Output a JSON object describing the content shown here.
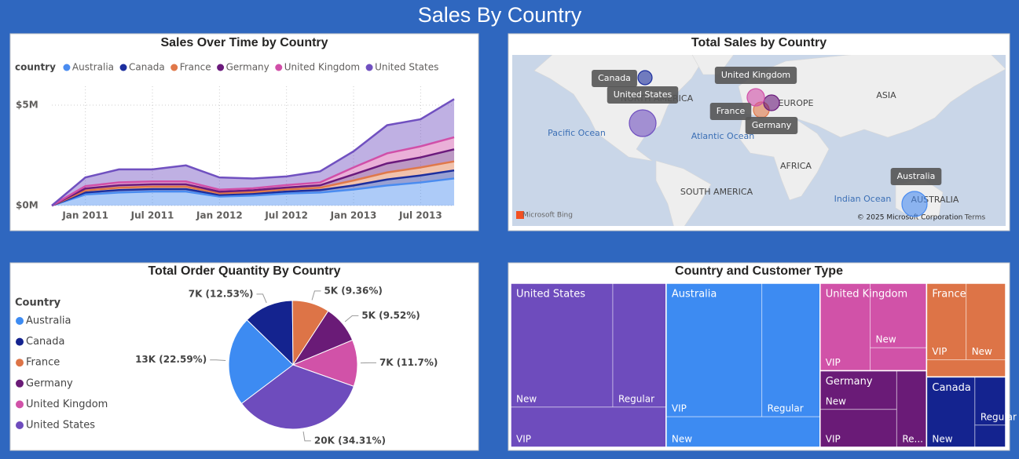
{
  "title": "Sales By Country",
  "chart_data": [
    {
      "type": "area",
      "title": "Sales Over Time by Country",
      "legend_title": "country",
      "stacked": true,
      "grid": true,
      "x": [
        null,
        "Jan 2011",
        null,
        "Jul 2011",
        null,
        "Jan 2012",
        null,
        "Jul 2012",
        null,
        "Jan 2013",
        null,
        "Jul 2013",
        null
      ],
      "ylim": [
        0,
        6000000
      ],
      "yticks": [
        {
          "value": 0,
          "label": "$0M"
        },
        {
          "value": 5000000,
          "label": "$5M"
        }
      ],
      "series": [
        {
          "name": "Australia",
          "color": "#4a8cf0",
          "values": [
            0,
            550000,
            650000,
            700000,
            700000,
            450000,
            500000,
            600000,
            650000,
            800000,
            1000000,
            1150000,
            1350000
          ]
        },
        {
          "name": "Canada",
          "color": "#1c2e9e",
          "values": [
            0,
            100000,
            120000,
            120000,
            120000,
            80000,
            90000,
            100000,
            120000,
            200000,
            300000,
            350000,
            400000
          ]
        },
        {
          "name": "France",
          "color": "#e0784a",
          "values": [
            0,
            100000,
            120000,
            120000,
            120000,
            80000,
            80000,
            100000,
            120000,
            250000,
            350000,
            400000,
            450000
          ]
        },
        {
          "name": "Germany",
          "color": "#6b1a7c",
          "values": [
            0,
            100000,
            120000,
            120000,
            120000,
            80000,
            90000,
            100000,
            120000,
            300000,
            450000,
            500000,
            600000
          ]
        },
        {
          "name": "United Kingdom",
          "color": "#d14fa8",
          "values": [
            0,
            120000,
            140000,
            140000,
            140000,
            100000,
            100000,
            120000,
            140000,
            350000,
            500000,
            550000,
            600000
          ]
        },
        {
          "name": "United States",
          "color": "#7050c0",
          "values": [
            0,
            430000,
            650000,
            600000,
            800000,
            610000,
            490000,
            430000,
            550000,
            800000,
            1400000,
            1350000,
            1900000
          ]
        }
      ]
    },
    {
      "type": "map",
      "title": "Total Sales by Country",
      "categories": [
        "Australia",
        "Canada",
        "France",
        "Germany",
        "United Kingdom",
        "United States"
      ],
      "values": [
        9200000,
        2900000,
        3600000,
        3600000,
        4400000,
        10400000
      ],
      "colors": [
        "#4a8cf0",
        "#1c2e9e",
        "#e0784a",
        "#6b1a7c",
        "#d14fa8",
        "#7050c0"
      ],
      "map_labels": [
        "NORTH AMERICA",
        "EUROPE",
        "ASIA",
        "Pacific Ocean",
        "Atlantic Ocean",
        "AFRICA",
        "SOUTH AMERICA",
        "Indian Ocean",
        "AUSTRALIA",
        "Microsoft Bing",
        "© 2025 Microsoft Corporation",
        "Terms"
      ]
    },
    {
      "type": "pie",
      "title": "Total Order Quantity By Country",
      "legend_title": "Country",
      "categories": [
        "Australia",
        "Canada",
        "France",
        "Germany",
        "United Kingdom",
        "United States"
      ],
      "values": [
        22.59,
        12.53,
        9.36,
        9.52,
        11.7,
        34.31
      ],
      "value_labels": [
        "13K (22.59%)",
        "7K (12.53%)",
        "5K (9.36%)",
        "5K (9.52%)",
        "7K (11.7%)",
        "20K (34.31%)"
      ],
      "colors": [
        "#3d8bf2",
        "#14238f",
        "#dd7447",
        "#6a1b77",
        "#d152a8",
        "#6e4cbd"
      ]
    },
    {
      "type": "treemap",
      "title": "Country and Customer Type",
      "groups": [
        {
          "name": "United States",
          "color": "#6e4cbd",
          "children": [
            {
              "name": "New",
              "value": 205
            },
            {
              "name": "Regular",
              "value": 107
            },
            {
              "name": "VIP",
              "value": 101
            }
          ]
        },
        {
          "name": "Australia",
          "color": "#3d8bf2",
          "children": [
            {
              "name": "VIP",
              "value": 207
            },
            {
              "name": "Regular",
              "value": 126
            },
            {
              "name": "New",
              "value": 76
            }
          ]
        },
        {
          "name": "United Kingdom",
          "color": "#d152a8",
          "children": [
            {
              "name": "VIP",
              "value": 71
            },
            {
              "name": "New",
              "value": 59
            },
            {
              "name": null,
              "value": 21
            }
          ]
        },
        {
          "name": "Germany",
          "color": "#6a1b77",
          "children": [
            {
              "name": "New",
              "value": 48
            },
            {
              "name": "VIP",
              "value": 47
            },
            {
              "name": "Re...",
              "value": 37
            }
          ]
        },
        {
          "name": "France",
          "color": "#dd7447",
          "children": [
            {
              "name": "VIP",
              "value": 49
            },
            {
              "name": "New",
              "value": 49
            },
            {
              "name": null,
              "value": 22
            }
          ]
        },
        {
          "name": "Canada",
          "color": "#14238f",
          "children": [
            {
              "name": "New",
              "value": 55
            },
            {
              "name": "Regular",
              "value": 24
            },
            {
              "name": null,
              "value": 11
            }
          ]
        }
      ]
    }
  ]
}
